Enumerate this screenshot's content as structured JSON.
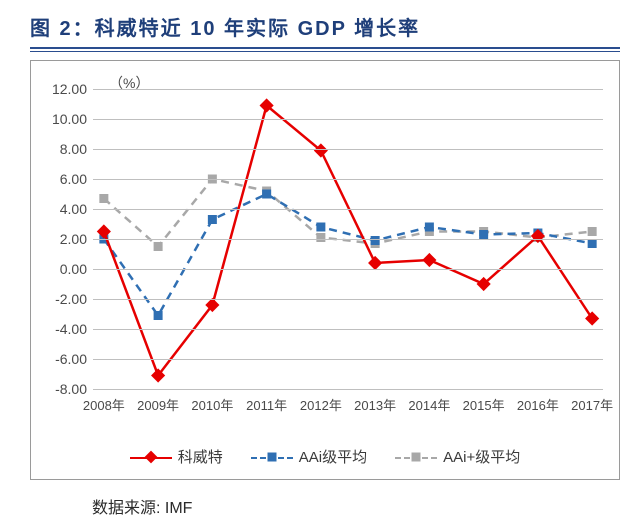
{
  "title": "图 2：科威特近 10 年实际 GDP 增长率",
  "title_fontsize": 20,
  "title_color": "#1f3f7a",
  "title_rule_color": "#2a4d8f",
  "source_label": "数据来源: IMF",
  "chart": {
    "type": "line",
    "y_unit_label": "（%）",
    "background_color": "#ffffff",
    "frame_border_color": "#9a9a9a",
    "grid_color": "#bfbfbf",
    "ylim": [
      -8,
      12
    ],
    "ytick_step": 2,
    "yticks": [
      -8,
      -6,
      -4,
      -2,
      0,
      2,
      4,
      6,
      8,
      10,
      12
    ],
    "ytick_labels": [
      "-8.00",
      "-6.00",
      "-4.00",
      "-2.00",
      "0.00",
      "2.00",
      "4.00",
      "6.00",
      "8.00",
      "10.00",
      "12.00"
    ],
    "label_fontsize": 14,
    "label_color": "#4a4a4a",
    "categories": [
      "2008年",
      "2009年",
      "2010年",
      "2011年",
      "2012年",
      "2013年",
      "2014年",
      "2015年",
      "2016年",
      "2017年"
    ],
    "series": [
      {
        "key": "kuwait",
        "label": "科威特",
        "color": "#e60000",
        "line_width": 2.5,
        "dash": "none",
        "marker": "diamond",
        "marker_size": 10,
        "values": [
          2.5,
          -7.1,
          -2.4,
          10.9,
          7.9,
          0.4,
          0.6,
          -1.0,
          2.2,
          -3.3
        ]
      },
      {
        "key": "aai",
        "label": "AAi级平均",
        "color": "#2f6fb3",
        "line_width": 2.5,
        "dash": "8 6",
        "marker": "square",
        "marker_size": 9,
        "values": [
          2.0,
          -3.1,
          3.3,
          5.0,
          2.8,
          1.9,
          2.8,
          2.3,
          2.4,
          1.7
        ]
      },
      {
        "key": "aaiplus",
        "label": "AAi+级平均",
        "color": "#a8a8a8",
        "line_width": 2.5,
        "dash": "8 6",
        "marker": "square",
        "marker_size": 9,
        "values": [
          4.7,
          1.5,
          6.0,
          5.2,
          2.1,
          1.7,
          2.5,
          2.5,
          2.1,
          2.5
        ]
      }
    ],
    "legend_position": "bottom",
    "legend_fontsize": 15
  }
}
